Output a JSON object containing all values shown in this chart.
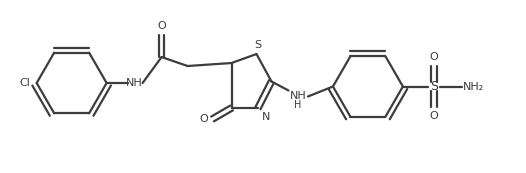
{
  "bg_color": "#ffffff",
  "line_color": "#3d3d3d",
  "line_width": 1.6,
  "figsize": [
    5.26,
    1.73
  ],
  "dpi": 100,
  "xlim": [
    0,
    10.5
  ],
  "ylim": [
    0,
    3.3
  ]
}
